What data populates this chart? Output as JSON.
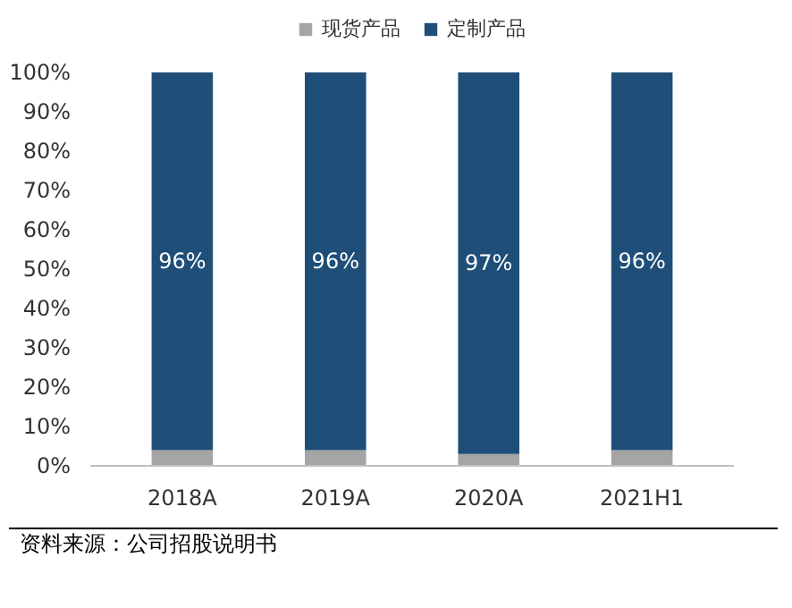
{
  "chart_data": {
    "type": "bar",
    "stacked": true,
    "categories": [
      "2018A",
      "2019A",
      "2020A",
      "2021H1"
    ],
    "series": [
      {
        "name": "现货产品",
        "color": "#a5a5a5",
        "values": [
          4,
          4,
          3,
          4
        ]
      },
      {
        "name": "定制产品",
        "color": "#1f4e79",
        "values": [
          96,
          96,
          97,
          96
        ],
        "value_labels": [
          "96%",
          "96%",
          "97%",
          "96%"
        ]
      }
    ],
    "ylim": [
      0,
      100
    ],
    "yticks": [
      {
        "value": 0,
        "label": "0%"
      },
      {
        "value": 10,
        "label": "10%"
      },
      {
        "value": 20,
        "label": "20%"
      },
      {
        "value": 30,
        "label": "30%"
      },
      {
        "value": 40,
        "label": "40%"
      },
      {
        "value": 50,
        "label": "50%"
      },
      {
        "value": 60,
        "label": "60%"
      },
      {
        "value": 70,
        "label": "70%"
      },
      {
        "value": 80,
        "label": "80%"
      },
      {
        "value": 90,
        "label": "90%"
      },
      {
        "value": 100,
        "label": "100%"
      }
    ],
    "legend": "top",
    "grid": false,
    "annotations": [
      "资料来源：公司招股说明书"
    ]
  }
}
